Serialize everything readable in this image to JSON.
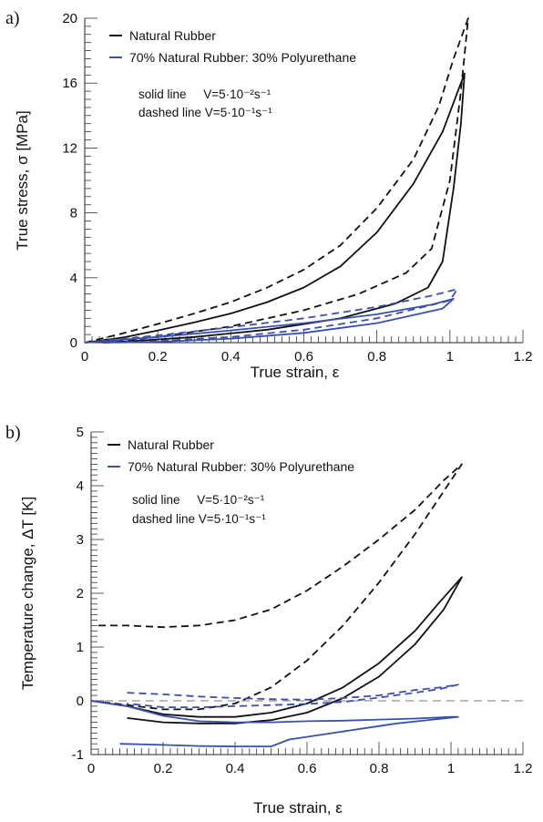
{
  "chart_data": [
    {
      "type": "line",
      "panel_label": "a)",
      "xlabel": "True strain, ε",
      "ylabel": "True stress, σ [MPa]",
      "xlim": [
        0,
        1.2
      ],
      "ylim": [
        0,
        20
      ],
      "x_ticks": [
        "0",
        "0.2",
        "0.4",
        "0.6",
        "0.8",
        "1",
        "1.2"
      ],
      "y_ticks": [
        "0",
        "4",
        "8",
        "12",
        "16",
        "20"
      ],
      "legend": [
        {
          "label": "Natural Rubber",
          "color": "#111111"
        },
        {
          "label": "70% Natural Rubber: 30% Polyurethane",
          "color": "#3a4fb0"
        }
      ],
      "notes": [
        "solid line     V=5·10⁻²s⁻¹",
        "dashed line V=5·10⁻¹s⁻¹"
      ],
      "series": [
        {
          "group": "Natural Rubber",
          "rate": "V=5·10⁻²s⁻¹",
          "style": "solid",
          "color": "#111111",
          "points": [
            [
              0,
              0
            ],
            [
              0.1,
              0.3
            ],
            [
              0.2,
              0.75
            ],
            [
              0.3,
              1.25
            ],
            [
              0.4,
              1.8
            ],
            [
              0.5,
              2.5
            ],
            [
              0.6,
              3.4
            ],
            [
              0.7,
              4.7
            ],
            [
              0.8,
              6.8
            ],
            [
              0.9,
              9.8
            ],
            [
              0.98,
              13
            ],
            [
              1.04,
              16.6
            ],
            [
              1.03,
              13.5
            ],
            [
              1.01,
              9.5
            ],
            [
              0.98,
              5
            ],
            [
              0.94,
              3.4
            ],
            [
              0.85,
              2.4
            ],
            [
              0.7,
              1.5
            ],
            [
              0.5,
              0.8
            ],
            [
              0.3,
              0.35
            ],
            [
              0.1,
              0.05
            ],
            [
              0.05,
              0
            ]
          ]
        },
        {
          "group": "Natural Rubber",
          "rate": "V=5·10⁻¹s⁻¹",
          "style": "dashed",
          "color": "#111111",
          "points": [
            [
              0,
              0
            ],
            [
              0.1,
              0.55
            ],
            [
              0.2,
              1.15
            ],
            [
              0.3,
              1.8
            ],
            [
              0.4,
              2.5
            ],
            [
              0.5,
              3.4
            ],
            [
              0.6,
              4.5
            ],
            [
              0.7,
              6.0
            ],
            [
              0.8,
              8.3
            ],
            [
              0.9,
              11.3
            ],
            [
              0.97,
              14.6
            ],
            [
              1.01,
              17.5
            ],
            [
              1.05,
              20
            ],
            [
              1.03,
              15.5
            ],
            [
              1.0,
              10
            ],
            [
              0.95,
              5.8
            ],
            [
              0.88,
              4.3
            ],
            [
              0.75,
              3.0
            ],
            [
              0.6,
              2.0
            ],
            [
              0.4,
              1.0
            ],
            [
              0.2,
              0.35
            ],
            [
              0.05,
              0
            ]
          ]
        },
        {
          "group": "70% Natural Rubber: 30% Polyurethane",
          "rate": "V=5·10⁻²s⁻¹",
          "style": "solid",
          "color": "#3a4fb0",
          "points": [
            [
              0,
              0
            ],
            [
              0.2,
              0.35
            ],
            [
              0.4,
              0.75
            ],
            [
              0.6,
              1.2
            ],
            [
              0.8,
              1.75
            ],
            [
              0.95,
              2.35
            ],
            [
              1.01,
              2.7
            ],
            [
              0.98,
              2.1
            ],
            [
              0.8,
              1.2
            ],
            [
              0.6,
              0.6
            ],
            [
              0.4,
              0.25
            ],
            [
              0.2,
              0.05
            ],
            [
              0.05,
              0
            ]
          ]
        },
        {
          "group": "70% Natural Rubber: 30% Polyurethane",
          "rate": "V=5·10⁻¹s⁻¹",
          "style": "dashed",
          "color": "#3a4fb0",
          "points": [
            [
              0,
              0
            ],
            [
              0.2,
              0.45
            ],
            [
              0.4,
              0.95
            ],
            [
              0.6,
              1.5
            ],
            [
              0.8,
              2.2
            ],
            [
              0.95,
              2.9
            ],
            [
              1.02,
              3.3
            ],
            [
              1.0,
              2.6
            ],
            [
              0.8,
              1.5
            ],
            [
              0.6,
              0.8
            ],
            [
              0.4,
              0.35
            ],
            [
              0.2,
              0.1
            ],
            [
              0.05,
              0
            ]
          ]
        }
      ]
    },
    {
      "type": "line",
      "panel_label": "b)",
      "xlabel": "True strain, ε",
      "ylabel": "Temperature change, ΔT [K]",
      "xlim": [
        0,
        1.2
      ],
      "ylim": [
        -1,
        5
      ],
      "x_ticks": [
        "0",
        "0.2",
        "0.4",
        "0.6",
        "0.8",
        "1",
        "1.2"
      ],
      "y_ticks": [
        "-1",
        "0",
        "1",
        "2",
        "3",
        "4",
        "5"
      ],
      "zero_reference_line": true,
      "legend": [
        {
          "label": "Natural Rubber",
          "color": "#111111"
        },
        {
          "label": "70% Natural Rubber: 30% Polyurethane",
          "color": "#3a4fb0"
        }
      ],
      "notes": [
        "solid line     V=5·10⁻²s⁻¹",
        "dashed line V=5·10⁻¹s⁻¹"
      ],
      "series": [
        {
          "group": "Natural Rubber",
          "rate": "V=5·10⁻²s⁻¹",
          "style": "solid",
          "color": "#111111",
          "points": [
            [
              0,
              0
            ],
            [
              0.1,
              -0.1
            ],
            [
              0.2,
              -0.25
            ],
            [
              0.3,
              -0.3
            ],
            [
              0.4,
              -0.3
            ],
            [
              0.5,
              -0.22
            ],
            [
              0.6,
              -0.05
            ],
            [
              0.7,
              0.25
            ],
            [
              0.8,
              0.7
            ],
            [
              0.9,
              1.3
            ],
            [
              0.97,
              1.85
            ],
            [
              1.03,
              2.3
            ],
            [
              0.98,
              1.7
            ],
            [
              0.9,
              1.05
            ],
            [
              0.8,
              0.45
            ],
            [
              0.7,
              0.05
            ],
            [
              0.6,
              -0.22
            ],
            [
              0.5,
              -0.36
            ],
            [
              0.4,
              -0.42
            ],
            [
              0.3,
              -0.42
            ],
            [
              0.2,
              -0.4
            ],
            [
              0.1,
              -0.32
            ]
          ]
        },
        {
          "group": "Natural Rubber",
          "rate": "V=5·10⁻¹s⁻¹",
          "style": "dashed",
          "color": "#111111",
          "points": [
            [
              0,
              0
            ],
            [
              0.1,
              -0.08
            ],
            [
              0.2,
              -0.16
            ],
            [
              0.3,
              -0.16
            ],
            [
              0.4,
              -0.05
            ],
            [
              0.5,
              0.25
            ],
            [
              0.6,
              0.75
            ],
            [
              0.7,
              1.4
            ],
            [
              0.8,
              2.2
            ],
            [
              0.9,
              3.1
            ],
            [
              0.97,
              3.8
            ],
            [
              1.03,
              4.4
            ],
            [
              0.98,
              4.1
            ],
            [
              0.9,
              3.55
            ],
            [
              0.8,
              3.0
            ],
            [
              0.7,
              2.5
            ],
            [
              0.6,
              2.05
            ],
            [
              0.5,
              1.7
            ],
            [
              0.4,
              1.5
            ],
            [
              0.3,
              1.4
            ],
            [
              0.2,
              1.37
            ],
            [
              0.1,
              1.4
            ],
            [
              0.02,
              1.4
            ]
          ]
        },
        {
          "group": "70% Natural Rubber: 30% Polyurethane",
          "rate": "V=5·10⁻²s⁻¹",
          "style": "solid",
          "color": "#3a4fb0",
          "points": [
            [
              0,
              0
            ],
            [
              0.1,
              -0.1
            ],
            [
              0.2,
              -0.28
            ],
            [
              0.3,
              -0.38
            ],
            [
              0.4,
              -0.4
            ],
            [
              0.5,
              -0.4
            ],
            [
              0.6,
              -0.38
            ],
            [
              0.7,
              -0.37
            ],
            [
              0.8,
              -0.35
            ],
            [
              0.9,
              -0.33
            ],
            [
              1.0,
              -0.3
            ],
            [
              1.02,
              -0.3
            ],
            [
              0.95,
              -0.35
            ],
            [
              0.85,
              -0.42
            ],
            [
              0.75,
              -0.52
            ],
            [
              0.65,
              -0.62
            ],
            [
              0.55,
              -0.72
            ],
            [
              0.5,
              -0.85
            ],
            [
              0.4,
              -0.85
            ],
            [
              0.3,
              -0.84
            ],
            [
              0.2,
              -0.82
            ],
            [
              0.08,
              -0.8
            ]
          ]
        },
        {
          "group": "70% Natural Rubber: 30% Polyurethane",
          "rate": "V=5·10⁻¹s⁻¹",
          "style": "dashed",
          "color": "#3a4fb0",
          "points": [
            [
              0.1,
              0.15
            ],
            [
              0.2,
              0.12
            ],
            [
              0.3,
              0.08
            ],
            [
              0.4,
              0.05
            ],
            [
              0.5,
              0.03
            ],
            [
              0.6,
              0.02
            ],
            [
              0.7,
              0.05
            ],
            [
              0.8,
              0.1
            ],
            [
              0.9,
              0.2
            ],
            [
              0.97,
              0.25
            ],
            [
              1.02,
              0.3
            ],
            [
              0.97,
              0.22
            ],
            [
              0.9,
              0.15
            ],
            [
              0.8,
              0.06
            ],
            [
              0.7,
              -0.02
            ],
            [
              0.6,
              -0.06
            ],
            [
              0.5,
              -0.08
            ],
            [
              0.4,
              -0.1
            ],
            [
              0.3,
              -0.12
            ],
            [
              0.2,
              -0.12
            ],
            [
              0.1,
              -0.05
            ]
          ]
        }
      ]
    }
  ]
}
